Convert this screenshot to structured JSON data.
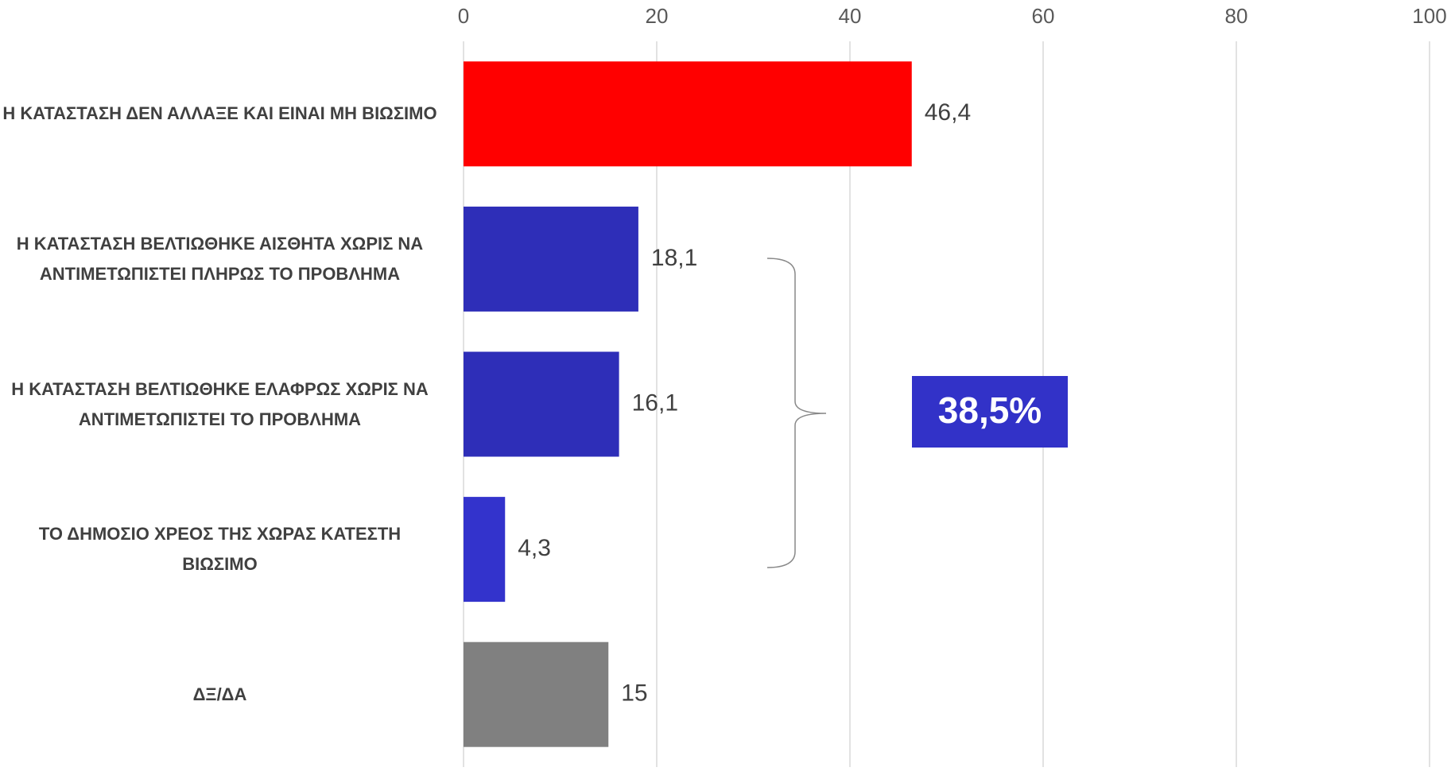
{
  "chart_data": {
    "type": "hbar",
    "categories": [
      "Η ΚΑΤΑΣΤΑΣΗ ΔΕΝ ΑΛΛΑΞΕ ΚΑΙ ΕΙΝΑΙ ΜΗ ΒΙΩΣΙΜΟ",
      "Η ΚΑΤΑΣΤΑΣΗ ΒΕΛΤΙΩΘΗΚΕ ΑΙΣΘΗΤΑ ΧΩΡΙΣ ΝΑ ΑΝΤΙΜΕΤΩΠΙΣΤΕΙ ΠΛΗΡΩΣ ΤΟ ΠΡΟΒΛΗΜΑ",
      "Η ΚΑΤΑΣΤΑΣΗ ΒΕΛΤΙΩΘΗΚΕ ΕΛΑΦΡΩΣ ΧΩΡΙΣ ΝΑ ΑΝΤΙΜΕΤΩΠΙΣΤΕΙ ΤΟ ΠΡΟΒΛΗΜΑ",
      "ΤΟ ΔΗΜΟΣΙΟ ΧΡΕΟΣ ΤΗΣ ΧΩΡΑΣ ΚΑΤΕΣΤΗ ΒΙΩΣΙΜΟ",
      "ΔΞ/ΔΑ"
    ],
    "values": [
      46.4,
      18.1,
      16.1,
      4.3,
      15
    ],
    "value_labels": [
      "46,4",
      "18,1",
      "16,1",
      "4,3",
      "15"
    ],
    "colors": [
      "#ff0000",
      "#2e2eb8",
      "#2e2eb8",
      "#3333cc",
      "#808080"
    ],
    "xlim": [
      0,
      100
    ],
    "xticks": [
      0,
      20,
      40,
      60,
      80,
      100
    ],
    "grid": true,
    "annotation": "38,5%",
    "annotation_color": "#3232c8"
  }
}
